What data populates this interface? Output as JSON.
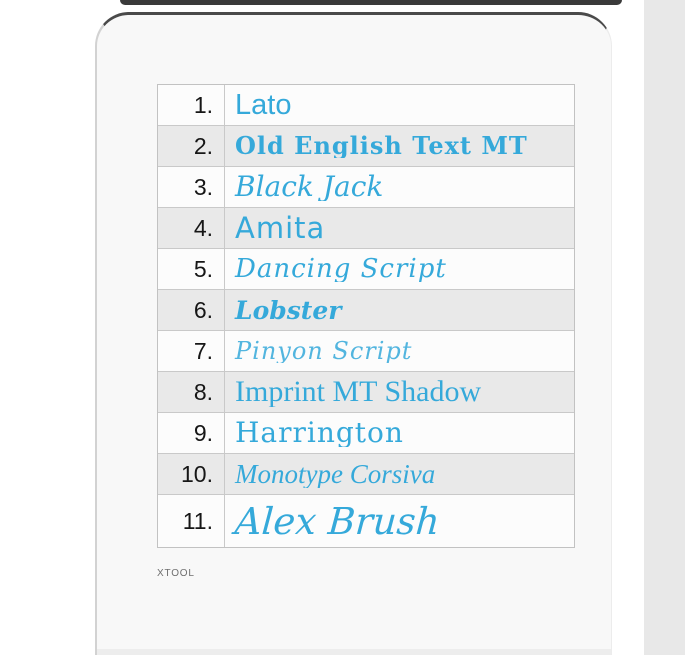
{
  "page": {
    "background_color": "#ffffff",
    "side_strip_color": "#e8e8e8",
    "card_color": "#f8f8f8",
    "accent_color": "#35a9da",
    "row_alt_color": "#e9e9e9",
    "table_border_color": "#c2c2c2"
  },
  "brand": "XTOOL",
  "font_list": {
    "items": [
      {
        "number": "1.",
        "name": "Lato",
        "style": "lato"
      },
      {
        "number": "2.",
        "name": "Old English Text MT",
        "style": "old-english"
      },
      {
        "number": "3.",
        "name": "Black Jack",
        "style": "black-jack"
      },
      {
        "number": "4.",
        "name": "Amita",
        "style": "amita"
      },
      {
        "number": "5.",
        "name": "Dancing Script",
        "style": "dancing-script"
      },
      {
        "number": "6.",
        "name": "Lobster",
        "style": "lobster"
      },
      {
        "number": "7.",
        "name": "Pinyon Script",
        "style": "pinyon-script"
      },
      {
        "number": "8.",
        "name": "Imprint MT Shadow",
        "style": "imprint-mt-shadow"
      },
      {
        "number": "9.",
        "name": "Harrington",
        "style": "harrington"
      },
      {
        "number": "10.",
        "name": "Monotype Corsiva",
        "style": "monotype-corsiva"
      },
      {
        "number": "11.",
        "name": "Alex Brush",
        "style": "alex-brush"
      }
    ]
  }
}
